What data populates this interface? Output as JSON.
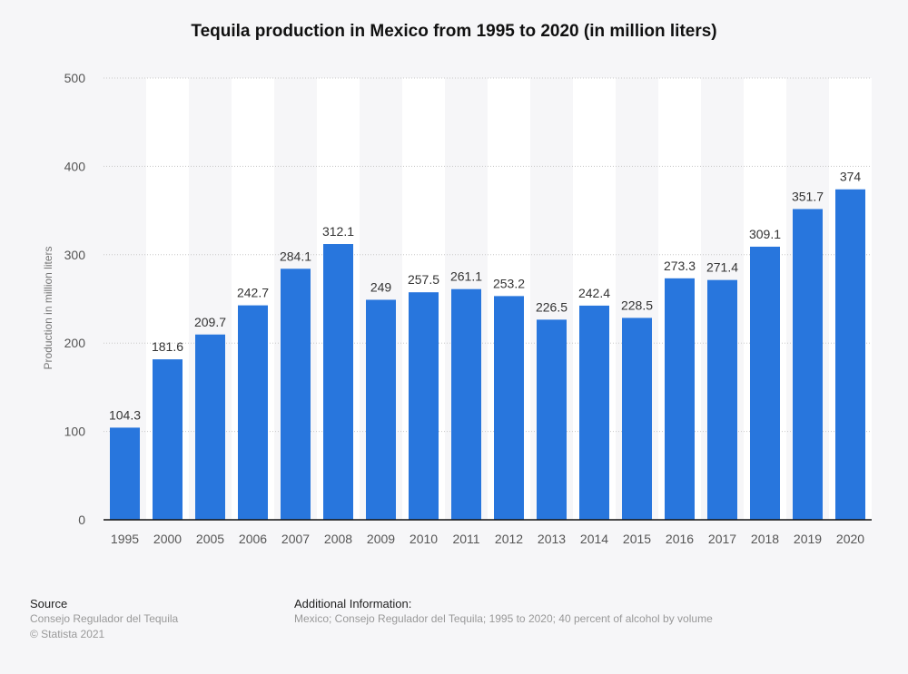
{
  "chart_data": {
    "type": "bar",
    "title": "Tequila production in Mexico from 1995 to 2020 (in million liters)",
    "xlabel": "",
    "ylabel": "Production in million liters",
    "ylim": [
      0,
      500
    ],
    "yticks": [
      0,
      100,
      200,
      300,
      400,
      500
    ],
    "grid": true,
    "categories": [
      "1995",
      "2000",
      "2005",
      "2006",
      "2007",
      "2008",
      "2009",
      "2010",
      "2011",
      "2012",
      "2013",
      "2014",
      "2015",
      "2016",
      "2017",
      "2018",
      "2019",
      "2020"
    ],
    "values": [
      104.3,
      181.6,
      209.7,
      242.7,
      284.1,
      312.1,
      249,
      257.5,
      261.1,
      253.2,
      226.5,
      242.4,
      228.5,
      273.3,
      271.4,
      309.1,
      351.7,
      374
    ],
    "data_labels": [
      "104.3",
      "181.6",
      "209.7",
      "242.7",
      "284.1",
      "312.1",
      "249",
      "257.5",
      "261.1",
      "253.2",
      "226.5",
      "242.4",
      "228.5",
      "273.3",
      "271.4",
      "309.1",
      "351.7",
      "374"
    ],
    "bar_color": "#2876dd"
  },
  "footer": {
    "source_heading": "Source",
    "source_text": "Consejo Regulador del Tequila",
    "copyright": "© Statista 2021",
    "info_heading": "Additional Information:",
    "info_text": "Mexico; Consejo Regulador del Tequila; 1995 to 2020; 40 percent of alcohol by volume"
  }
}
